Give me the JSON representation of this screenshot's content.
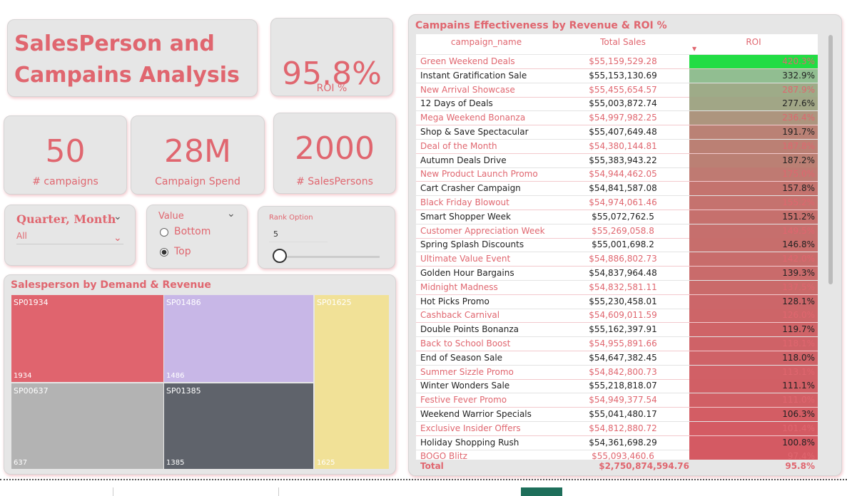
{
  "header": {
    "title_lines": [
      "SalesPerson and",
      "Campains Analysis"
    ]
  },
  "kpis": [
    {
      "value": "95.8%",
      "label": "ROI %"
    },
    {
      "value": "50",
      "label": "# campaigns"
    },
    {
      "value": "28M",
      "label": "Campaign Spend"
    },
    {
      "value": "2000",
      "label": "# SalesPersons"
    }
  ],
  "slicers": {
    "period": {
      "title": "Quarter, Month",
      "selection": "All"
    },
    "value": {
      "title": "Value",
      "options": [
        "Bottom",
        "Top"
      ],
      "selected": 1
    },
    "rank": {
      "title": "Rank Option",
      "value": "5"
    }
  },
  "treemap": {
    "title": "Salesperson by Demand & Revenue",
    "items": [
      {
        "name": "SP01934",
        "value": "1934",
        "color": "#e0646e"
      },
      {
        "name": "SP01486",
        "value": "1486",
        "color": "#c8b7e7"
      },
      {
        "name": "SP01625",
        "value": "1625",
        "color": "#f1e197"
      },
      {
        "name": "SP00637",
        "value": "637",
        "color": "#b3b3b3"
      },
      {
        "name": "SP01385",
        "value": "1385",
        "color": "#5f636b"
      }
    ]
  },
  "table": {
    "title": "Campains Effectiveness by Revenue & ROI %",
    "columns": [
      "campaign_name",
      "Total Sales",
      "ROI"
    ],
    "rows": [
      [
        "Green Weekend Deals",
        "$55,159,529.28",
        "420.3%"
      ],
      [
        "Instant Gratification Sale",
        "$55,153,130.69",
        "332.9%"
      ],
      [
        "New Arrival Showcase",
        "$55,455,654.57",
        "287.9%"
      ],
      [
        "12 Days of Deals",
        "$55,003,872.74",
        "277.6%"
      ],
      [
        "Mega Weekend Bonanza",
        "$54,997,982.25",
        "236.4%"
      ],
      [
        "Shop & Save Spectacular",
        "$55,407,649.48",
        "191.7%"
      ],
      [
        "Deal of the Month",
        "$54,380,144.81",
        "187.8%"
      ],
      [
        "Autumn Deals Drive",
        "$55,383,943.22",
        "187.2%"
      ],
      [
        "New Product Launch Promo",
        "$54,944,462.05",
        "175.0%"
      ],
      [
        "Cart Crasher Campaign",
        "$54,841,587.08",
        "157.8%"
      ],
      [
        "Black Friday Blowout",
        "$54,974,061.46",
        "155.2%"
      ],
      [
        "Smart Shopper Week",
        "$55,072,762.5",
        "151.2%"
      ],
      [
        "Customer Appreciation Week",
        "$55,269,058.8",
        "149.5%"
      ],
      [
        "Spring Splash Discounts",
        "$55,001,698.2",
        "146.8%"
      ],
      [
        "Ultimate Value Event",
        "$54,886,802.73",
        "142.0%"
      ],
      [
        "Golden Hour Bargains",
        "$54,837,964.48",
        "139.3%"
      ],
      [
        "Midnight Madness",
        "$54,832,581.11",
        "137.5%"
      ],
      [
        "Hot Picks Promo",
        "$55,230,458.01",
        "128.1%"
      ],
      [
        "Cashback Carnival",
        "$54,609,011.59",
        "126.0%"
      ],
      [
        "Double Points Bonanza",
        "$55,162,397.91",
        "119.7%"
      ],
      [
        "Back to School Boost",
        "$54,955,891.66",
        "118.1%"
      ],
      [
        "End of Season Sale",
        "$54,647,382.45",
        "118.0%"
      ],
      [
        "Summer Sizzle Promo",
        "$54,842,800.73",
        "113.1%"
      ],
      [
        "Winter Wonders Sale",
        "$55,218,818.07",
        "111.1%"
      ],
      [
        "Festive Fever Promo",
        "$54,949,377.54",
        "111.0%"
      ],
      [
        "Weekend Warrior Specials",
        "$55,041,480.17",
        "106.3%"
      ],
      [
        "Exclusive Insider Offers",
        "$54,812,880.72",
        "101.4%"
      ],
      [
        "Holiday Shopping Rush",
        "$54,361,698.29",
        "100.8%"
      ],
      [
        "BOGO Blitz",
        "$55,093,460.6",
        "97.4%"
      ]
    ],
    "total": [
      "Total",
      "$2,750,874,594.76",
      "95.8%"
    ]
  }
}
